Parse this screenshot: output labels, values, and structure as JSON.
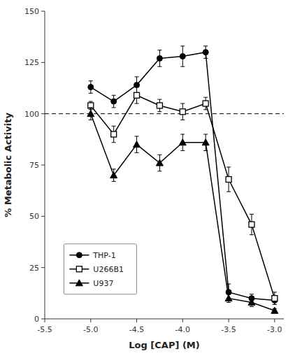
{
  "chart_data": {
    "type": "line",
    "x_label": "Log [CAP] (M)",
    "y_label": "% Metabolic Activity",
    "x": [
      -5.0,
      -4.75,
      -4.5,
      -4.25,
      -4.0,
      -3.75,
      -3.5,
      -3.25,
      -3.0
    ],
    "series": [
      {
        "name": "THP-1",
        "color": "#000000",
        "marker": "circle",
        "line_style": "solid",
        "values": [
          113,
          106,
          114,
          127,
          128,
          130,
          13,
          10,
          9
        ],
        "errors": [
          3,
          3,
          4,
          4,
          5,
          3,
          4,
          2,
          2
        ]
      },
      {
        "name": "U266B1",
        "color": "#000000",
        "marker": "open-square",
        "line_style": "solid",
        "values": [
          104,
          90,
          109,
          104,
          101,
          105,
          68,
          46,
          10
        ],
        "errors": [
          2,
          4,
          4,
          3,
          4,
          3,
          6,
          5,
          3
        ]
      },
      {
        "name": "U937",
        "color": "#000000",
        "marker": "triangle",
        "line_style": "solid",
        "values": [
          100,
          70,
          85,
          76,
          86,
          86,
          10,
          8,
          4
        ],
        "errors": [
          3,
          3,
          4,
          4,
          4,
          4,
          2,
          2,
          1
        ]
      }
    ],
    "reference_lines": [
      {
        "y": 100,
        "line_style": "dashed",
        "color": "#000000"
      }
    ],
    "xlim": [
      -5.5,
      -2.9
    ],
    "ylim": [
      0,
      150
    ],
    "xticks": [
      -5.5,
      {
        "value": -5.0,
        "label": "-5.0"
      },
      {
        "value": -4.5,
        "label": "-4.5"
      },
      {
        "value": -4.0,
        "label": "-4.0"
      },
      -3.5,
      {
        "value": -3.0,
        "label": "-3.0"
      }
    ],
    "yticks": [
      0,
      25,
      50,
      75,
      100,
      125,
      150
    ],
    "legend": "lower left",
    "grid": false
  }
}
